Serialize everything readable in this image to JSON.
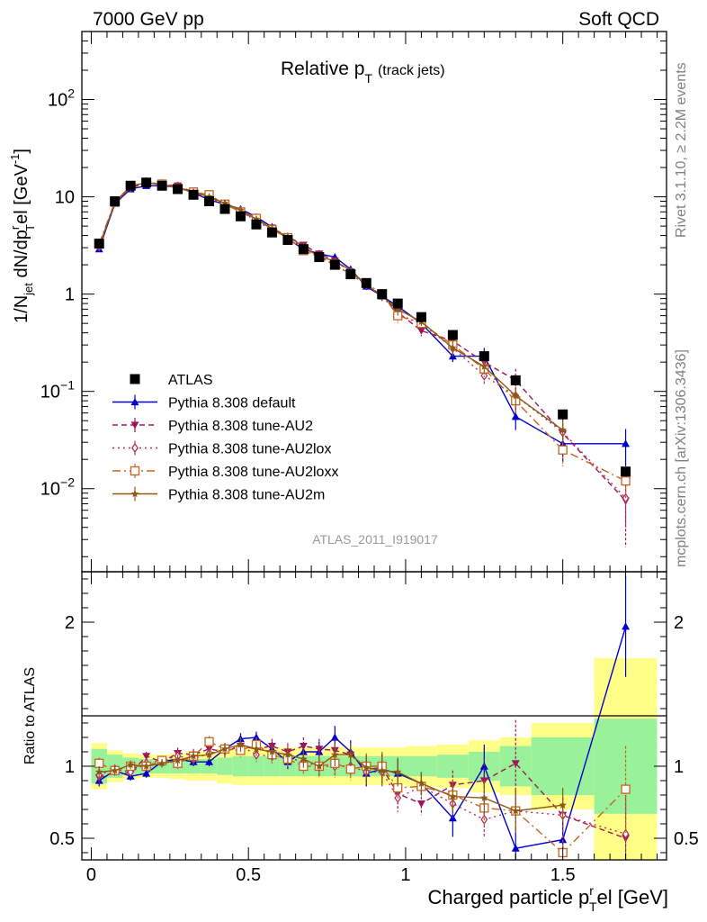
{
  "header": {
    "left": "7000 GeV pp",
    "right": "Soft QCD"
  },
  "side": {
    "upper": "Rivet 3.1.10, ≥ 2.2M events",
    "lower": "mcplots.cern.ch [arXiv:1306.3436]"
  },
  "analysis_id": "ATLAS_2011_I919017",
  "chart_data": [
    {
      "type": "line",
      "title": "Relative p_T (track jets)",
      "title_main": "Relative p",
      "title_sub": "T",
      "title_note": "(track jets)",
      "ylabel_main": "1/N",
      "ylabel_sub_jet": "jet",
      "ylabel_mid": " dN/dp",
      "ylabel_sup_r": "r",
      "ylabel_sub_T": "T",
      "ylabel_end": "el [GeV",
      "ylabel_sup_unit": "-1",
      "ylabel_close": "]",
      "y_scale": "log",
      "ylim": [
        0.0014,
        500
      ],
      "xlim": [
        -0.03,
        1.83
      ],
      "y_tick_labels": [
        "10^-2",
        "10^-1",
        "1",
        "10",
        "10^2"
      ],
      "legend_position": "center-left",
      "legend": [
        "ATLAS",
        "Pythia 8.308 default",
        "Pythia 8.308 tune-AU2",
        "Pythia 8.308 tune-AU2lox",
        "Pythia 8.308 tune-AU2loxx",
        "Pythia 8.308 tune-AU2m"
      ],
      "x": [
        0.025,
        0.075,
        0.125,
        0.175,
        0.225,
        0.275,
        0.325,
        0.375,
        0.425,
        0.475,
        0.525,
        0.575,
        0.625,
        0.675,
        0.725,
        0.775,
        0.825,
        0.875,
        0.925,
        0.975,
        1.05,
        1.15,
        1.25,
        1.35,
        1.5,
        1.7
      ],
      "series": [
        {
          "name": "ATLAS",
          "color": "#000000",
          "marker": "square",
          "values": [
            3.3,
            9.0,
            13.0,
            14.0,
            13.0,
            12.0,
            10.5,
            9.0,
            7.5,
            6.3,
            5.2,
            4.3,
            3.6,
            2.9,
            2.4,
            2.0,
            1.6,
            1.3,
            1.0,
            0.8,
            0.58,
            0.38,
            0.23,
            0.13,
            0.058,
            0.015
          ]
        },
        {
          "name": "Pythia 8.308 default",
          "color": "#0000cc",
          "marker": "triangle-up",
          "dash": "",
          "values": [
            2.9,
            8.5,
            12.0,
            13.0,
            13.0,
            12.5,
            11.0,
            9.3,
            8.4,
            7.5,
            6.2,
            4.9,
            3.7,
            2.9,
            2.6,
            2.4,
            1.8,
            1.2,
            0.95,
            0.75,
            0.5,
            0.23,
            0.23,
            0.055,
            0.029,
            0.029
          ],
          "errors": [
            0.1,
            0.1,
            0.1,
            0.1,
            0.1,
            0.1,
            0.1,
            0.1,
            0.1,
            0.1,
            0.1,
            0.1,
            0.1,
            0.1,
            0.1,
            0.1,
            0.1,
            0.1,
            0.1,
            0.1,
            0.02,
            0.03,
            0.05,
            0.015,
            0.01,
            0.012
          ]
        },
        {
          "name": "Pythia 8.308 tune-AU2",
          "color": "#a0145a",
          "marker": "triangle-down",
          "dash": "6,4",
          "values": [
            3.0,
            8.6,
            12.3,
            14.0,
            13.3,
            13.0,
            11.2,
            10.0,
            8.5,
            7.0,
            5.8,
            4.8,
            3.9,
            3.2,
            2.6,
            2.2,
            1.7,
            1.25,
            0.97,
            0.65,
            0.42,
            0.33,
            0.2,
            0.13,
            0.037,
            0.0075
          ],
          "errors": [
            0.1,
            0.1,
            0.1,
            0.1,
            0.1,
            0.1,
            0.1,
            0.1,
            0.1,
            0.1,
            0.1,
            0.1,
            0.1,
            0.1,
            0.1,
            0.1,
            0.1,
            0.1,
            0.1,
            0.1,
            0.05,
            0.05,
            0.05,
            0.04,
            0.015,
            0.005
          ]
        },
        {
          "name": "Pythia 8.308 tune-AU2lox",
          "color": "#b03060",
          "marker": "diamond-open",
          "dash": "2,4",
          "values": [
            3.1,
            8.8,
            12.5,
            14.2,
            13.5,
            12.8,
            11.0,
            9.8,
            8.3,
            7.2,
            5.6,
            4.6,
            3.8,
            3.0,
            2.4,
            2.0,
            1.6,
            1.25,
            0.96,
            0.62,
            0.5,
            0.28,
            0.145,
            0.09,
            0.038,
            0.008
          ],
          "errors": [
            0.1,
            0.1,
            0.1,
            0.1,
            0.1,
            0.1,
            0.1,
            0.1,
            0.1,
            0.1,
            0.1,
            0.1,
            0.1,
            0.1,
            0.1,
            0.1,
            0.1,
            0.1,
            0.1,
            0.1,
            0.05,
            0.05,
            0.03,
            0.03,
            0.015,
            0.004
          ]
        },
        {
          "name": "Pythia 8.308 tune-AU2loxx",
          "color": "#c8641e",
          "marker": "square-open",
          "dash": "9,4,2,4",
          "values": [
            3.3,
            8.8,
            13.0,
            14.0,
            13.5,
            12.2,
            11.2,
            10.5,
            8.4,
            7.0,
            6.0,
            4.6,
            3.8,
            2.8,
            2.4,
            2.0,
            1.6,
            1.3,
            1.0,
            0.6,
            0.5,
            0.3,
            0.17,
            0.08,
            0.025,
            0.012
          ],
          "errors": [
            0.1,
            0.1,
            0.1,
            0.1,
            0.1,
            0.1,
            0.1,
            0.1,
            0.1,
            0.1,
            0.1,
            0.1,
            0.1,
            0.1,
            0.1,
            0.1,
            0.1,
            0.1,
            0.1,
            0.1,
            0.05,
            0.05,
            0.03,
            0.02,
            0.008,
            0.004
          ]
        },
        {
          "name": "Pythia 8.308 tune-AU2m",
          "color": "#8c5a14",
          "marker": "star",
          "dash": "",
          "values": [
            3.1,
            8.7,
            12.8,
            14.0,
            13.3,
            12.5,
            11.2,
            10.0,
            8.6,
            7.3,
            5.9,
            4.7,
            3.9,
            3.1,
            2.4,
            2.2,
            1.75,
            1.25,
            0.95,
            0.7,
            0.52,
            0.28,
            0.18,
            0.09,
            0.04,
            0.0
          ],
          "errors": [
            0.1,
            0.1,
            0.1,
            0.1,
            0.1,
            0.1,
            0.1,
            0.1,
            0.1,
            0.1,
            0.1,
            0.1,
            0.1,
            0.1,
            0.1,
            0.1,
            0.1,
            0.1,
            0.1,
            0.1,
            0.05,
            0.05,
            0.03,
            0.02,
            0.01,
            0.0
          ]
        }
      ]
    },
    {
      "type": "line",
      "ylabel": "Ratio to ATLAS",
      "xlabel_main": "Charged particle p",
      "xlabel_sup": "r",
      "xlabel_sub": "T",
      "xlabel_end": "el [GeV]",
      "ylim": [
        0.35,
        2.35
      ],
      "xlim": [
        -0.03,
        1.83
      ],
      "x_tick_labels": [
        "0",
        "0.5",
        "1",
        "1.5"
      ],
      "y_tick_labels": [
        "0.5",
        "1",
        "2"
      ],
      "bands": {
        "edges": [
          0,
          0.05,
          0.1,
          0.15,
          0.2,
          0.25,
          0.3,
          0.35,
          0.4,
          0.45,
          0.5,
          0.55,
          0.6,
          0.65,
          0.7,
          0.75,
          0.8,
          0.85,
          0.9,
          0.95,
          1.0,
          1.1,
          1.2,
          1.3,
          1.4,
          1.6,
          1.8
        ],
        "green_half": [
          0.12,
          0.08,
          0.06,
          0.05,
          0.05,
          0.05,
          0.05,
          0.05,
          0.06,
          0.07,
          0.07,
          0.07,
          0.07,
          0.07,
          0.07,
          0.07,
          0.07,
          0.07,
          0.07,
          0.07,
          0.07,
          0.08,
          0.1,
          0.14,
          0.2,
          0.33
        ],
        "yellow_half": [
          0.16,
          0.11,
          0.09,
          0.08,
          0.08,
          0.09,
          0.1,
          0.1,
          0.12,
          0.13,
          0.13,
          0.13,
          0.13,
          0.13,
          0.13,
          0.13,
          0.13,
          0.13,
          0.13,
          0.13,
          0.14,
          0.15,
          0.18,
          0.2,
          0.3,
          0.75
        ]
      },
      "series": [
        {
          "name": "Pythia 8.308 default",
          "color": "#0000cc",
          "marker": "triangle-up",
          "dash": "",
          "values": [
            0.9,
            0.97,
            0.93,
            0.95,
            1.03,
            1.05,
            1.03,
            1.03,
            1.12,
            1.19,
            1.2,
            1.12,
            1.03,
            1.1,
            1.1,
            1.2,
            1.1,
            0.95,
            0.98,
            0.95,
            0.88,
            0.64,
            1.0,
            0.43,
            0.49,
            1.97
          ],
          "errors": [
            0.04,
            0.03,
            0.03,
            0.03,
            0.03,
            0.03,
            0.03,
            0.03,
            0.04,
            0.04,
            0.04,
            0.05,
            0.05,
            0.06,
            0.07,
            0.08,
            0.08,
            0.09,
            0.1,
            0.1,
            0.08,
            0.13,
            0.15,
            0.15,
            0.12,
            0.35
          ]
        },
        {
          "name": "Pythia 8.308 tune-AU2",
          "color": "#a0145a",
          "marker": "triangle-down",
          "dash": "6,4",
          "values": [
            0.92,
            0.96,
            0.95,
            1.07,
            1.03,
            1.09,
            1.08,
            1.12,
            1.1,
            1.14,
            1.12,
            1.14,
            1.1,
            1.14,
            1.12,
            1.11,
            1.08,
            0.98,
            0.99,
            0.81,
            0.74,
            0.87,
            0.9,
            1.02,
            0.66,
            0.5
          ],
          "errors": [
            0.04,
            0.03,
            0.03,
            0.03,
            0.03,
            0.04,
            0.04,
            0.04,
            0.04,
            0.05,
            0.05,
            0.05,
            0.06,
            0.06,
            0.07,
            0.08,
            0.08,
            0.09,
            0.1,
            0.1,
            0.08,
            0.1,
            0.15,
            0.3,
            0.12,
            0.3
          ]
        },
        {
          "name": "Pythia 8.308 tune-AU2lox",
          "color": "#b03060",
          "marker": "diamond-open",
          "dash": "2,4",
          "values": [
            0.94,
            0.98,
            0.96,
            1.02,
            1.04,
            1.07,
            1.05,
            1.09,
            1.11,
            1.14,
            1.08,
            1.07,
            1.06,
            1.03,
            1.0,
            1.0,
            1.0,
            0.96,
            0.96,
            0.78,
            0.86,
            0.74,
            0.63,
            0.69,
            0.66,
            0.53
          ],
          "errors": [
            0.04,
            0.03,
            0.03,
            0.03,
            0.03,
            0.04,
            0.04,
            0.04,
            0.04,
            0.05,
            0.05,
            0.05,
            0.06,
            0.06,
            0.07,
            0.08,
            0.08,
            0.09,
            0.1,
            0.1,
            0.08,
            0.1,
            0.12,
            0.15,
            0.12,
            0.25
          ]
        },
        {
          "name": "Pythia 8.308 tune-AU2loxx",
          "color": "#c8641e",
          "marker": "square-open",
          "dash": "9,4,2,4",
          "values": [
            1.02,
            0.97,
            1.0,
            1.0,
            1.04,
            1.02,
            1.07,
            1.17,
            1.12,
            1.11,
            1.15,
            1.08,
            1.05,
            1.0,
            1.0,
            1.02,
            0.98,
            1.0,
            1.0,
            0.85,
            0.86,
            0.8,
            0.71,
            0.69,
            0.4,
            0.84
          ],
          "errors": [
            0.04,
            0.03,
            0.03,
            0.03,
            0.03,
            0.04,
            0.04,
            0.04,
            0.04,
            0.05,
            0.05,
            0.05,
            0.06,
            0.06,
            0.07,
            0.08,
            0.08,
            0.09,
            0.1,
            0.1,
            0.08,
            0.1,
            0.12,
            0.15,
            0.12,
            0.3
          ]
        },
        {
          "name": "Pythia 8.308 tune-AU2m",
          "color": "#8c5a14",
          "marker": "star",
          "dash": "",
          "values": [
            0.96,
            0.97,
            1.01,
            1.0,
            1.02,
            1.04,
            1.07,
            1.08,
            1.12,
            1.15,
            1.12,
            1.1,
            1.08,
            1.05,
            1.0,
            1.08,
            1.08,
            0.99,
            0.97,
            0.96,
            0.88,
            0.79,
            0.78,
            0.69,
            0.73,
            0.0
          ],
          "errors": [
            0.04,
            0.03,
            0.03,
            0.03,
            0.03,
            0.04,
            0.04,
            0.04,
            0.04,
            0.05,
            0.05,
            0.05,
            0.06,
            0.06,
            0.07,
            0.08,
            0.08,
            0.09,
            0.1,
            0.1,
            0.08,
            0.1,
            0.12,
            0.15,
            0.12,
            0.0
          ]
        }
      ]
    }
  ]
}
